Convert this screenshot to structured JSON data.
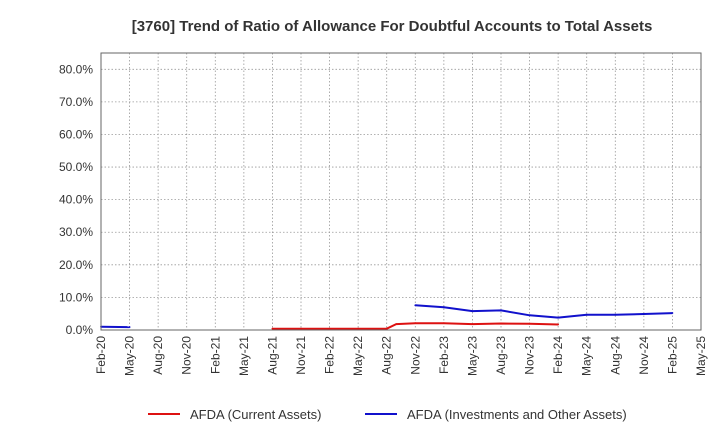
{
  "chart_data": {
    "type": "line",
    "title": "[3760]  Trend of Ratio of Allowance For Doubtful Accounts to Total Assets",
    "xlabel": "",
    "ylabel": "",
    "ylim": [
      0,
      85
    ],
    "yticks": [
      0,
      10,
      20,
      30,
      40,
      50,
      60,
      70,
      80
    ],
    "ytick_labels": [
      "0.0%",
      "10.0%",
      "20.0%",
      "30.0%",
      "40.0%",
      "50.0%",
      "60.0%",
      "70.0%",
      "80.0%"
    ],
    "x_start": "Feb-20",
    "xtick_labels": [
      "Feb-20",
      "May-20",
      "Aug-20",
      "Nov-20",
      "Feb-21",
      "May-21",
      "Aug-21",
      "Nov-21",
      "Feb-22",
      "May-22",
      "Aug-22",
      "Nov-22",
      "Feb-23",
      "May-23",
      "Aug-23",
      "Nov-23",
      "Feb-24",
      "May-24",
      "Aug-24",
      "Nov-24",
      "Feb-25",
      "May-25"
    ],
    "grid": true,
    "legend_position": "bottom",
    "series": [
      {
        "name": "AFDA (Current Assets)",
        "color": "#dd1111",
        "points": [
          [
            "Aug-21",
            0.4
          ],
          [
            "Nov-21",
            0.4
          ],
          [
            "Feb-22",
            0.4
          ],
          [
            "May-22",
            0.4
          ],
          [
            "Aug-22",
            0.4
          ],
          [
            "Sep-22",
            1.8
          ],
          [
            "Nov-22",
            2.1
          ],
          [
            "Feb-23",
            2.1
          ],
          [
            "May-23",
            1.8
          ],
          [
            "Aug-23",
            2.0
          ],
          [
            "Nov-23",
            1.9
          ],
          [
            "Feb-24",
            1.7
          ]
        ]
      },
      {
        "name": "AFDA (Investments and Other Assets)",
        "color": "#1111cc",
        "points": [
          [
            "Feb-20",
            1.0
          ],
          [
            "May-20",
            0.9
          ],
          [
            "Nov-22",
            7.6
          ],
          [
            "Feb-23",
            7.0
          ],
          [
            "May-23",
            5.8
          ],
          [
            "Aug-23",
            6.0
          ],
          [
            "Nov-23",
            4.5
          ],
          [
            "Feb-24",
            3.8
          ],
          [
            "May-24",
            4.7
          ],
          [
            "Aug-24",
            4.7
          ],
          [
            "Nov-24",
            4.9
          ],
          [
            "Feb-25",
            5.2
          ]
        ]
      }
    ]
  }
}
